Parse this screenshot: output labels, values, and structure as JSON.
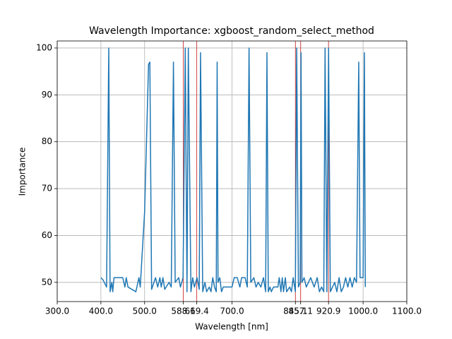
{
  "chart_data": {
    "type": "line",
    "title": "Wavelength Importance: xgboost_random_select_method",
    "x_label": "Wavelength [nm]",
    "y_label": "Importance",
    "x": [
      400,
      405,
      413,
      418,
      421,
      425,
      427,
      430,
      440,
      450,
      455,
      458,
      462,
      480,
      487,
      490,
      500,
      509,
      512,
      516,
      525,
      530,
      535,
      538,
      542,
      546,
      556,
      561,
      566,
      570,
      578,
      582,
      588,
      593,
      597,
      600,
      606,
      610,
      614,
      620,
      625,
      628,
      633,
      638,
      642,
      648,
      652,
      656,
      660,
      664,
      666,
      668,
      672,
      676,
      680,
      690,
      700,
      705,
      712,
      718,
      722,
      730,
      735,
      739,
      743,
      750,
      755,
      760,
      766,
      772,
      777,
      780,
      783,
      787,
      790,
      795,
      805,
      808,
      812,
      815,
      818,
      822,
      825,
      832,
      836,
      840,
      845,
      848,
      852,
      856,
      858,
      860,
      865,
      870,
      875,
      880,
      888,
      895,
      900,
      905,
      910,
      913,
      917,
      921,
      925,
      930,
      935,
      940,
      945,
      950,
      955,
      960,
      965,
      970,
      975,
      980,
      985,
      990,
      993,
      1000,
      1003,
      1005
    ],
    "series": [
      {
        "name": "importance",
        "color": "#1f77b4",
        "values": [
          51,
          50.5,
          49,
          100,
          48,
          50,
          48,
          51,
          51,
          51,
          49,
          51,
          49,
          48,
          51,
          49,
          65,
          96.5,
          97,
          48.5,
          51,
          49,
          51,
          49,
          51,
          48.5,
          50,
          49,
          97,
          50,
          51,
          49,
          51,
          100,
          48,
          100,
          48,
          51,
          49,
          51,
          48.5,
          99,
          48,
          50,
          48,
          49,
          48,
          51,
          49,
          48,
          97,
          50,
          51,
          48,
          49,
          49,
          49,
          51,
          51,
          49,
          51,
          51,
          49,
          100,
          50,
          51,
          49,
          50,
          49,
          51,
          48,
          99,
          48,
          49,
          48,
          49,
          49,
          51,
          48,
          51,
          48,
          51,
          48,
          49,
          48,
          51,
          48,
          100,
          49,
          50,
          99,
          50,
          51,
          49,
          50,
          51,
          49,
          51,
          48,
          49,
          48,
          100,
          48,
          100,
          48,
          49,
          50,
          48,
          51,
          48,
          49,
          51,
          49,
          51,
          49,
          51,
          50,
          97,
          51,
          51,
          99,
          49
        ]
      }
    ],
    "vlines": [
      588.6,
      619.4,
      845.1,
      857.1,
      920.9
    ],
    "vline_color": "#d62728",
    "xlim": [
      300,
      1100
    ],
    "ylim": [
      45.9,
      101.5
    ],
    "xticks": [
      {
        "value": 300,
        "label": "300.0"
      },
      {
        "value": 400,
        "label": "400.0"
      },
      {
        "value": 500,
        "label": "500.0"
      },
      {
        "value": 588.6,
        "label": "588.6"
      },
      {
        "value": 619.4,
        "label": "619.4"
      },
      {
        "value": 700,
        "label": "700.0"
      },
      {
        "value": 845.1,
        "label": "845.1"
      },
      {
        "value": 857.1,
        "label": "857.1"
      },
      {
        "value": 920.9,
        "label": "920.9"
      },
      {
        "value": 1000,
        "label": "1000.0"
      },
      {
        "value": 1100,
        "label": "1100.0"
      }
    ],
    "yticks": [
      50,
      60,
      70,
      80,
      90,
      100
    ],
    "grid": true
  }
}
